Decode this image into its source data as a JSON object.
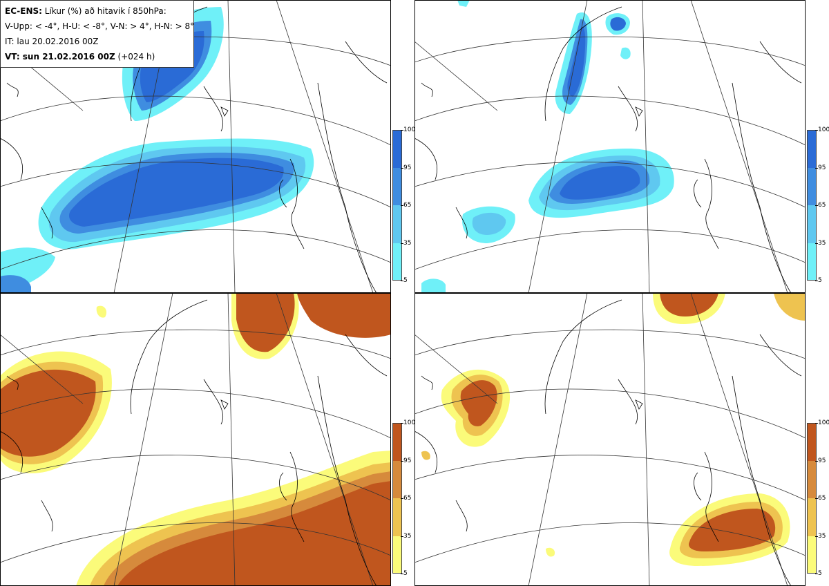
{
  "legend": {
    "line1_bold": "EC-ENS:",
    "line1_text": " Líkur (%) að hitavik í 850hPa:",
    "line2": "V-Upp: < -4°, H-U: < -8°, V-N: > 4°, H-N: > 8°",
    "line3": "IT: lau 20.02.2016 00Z",
    "line4_bold": "VT: sun 21.02.2016 00Z",
    "line4_text": " (+024 h)"
  },
  "colorbars": {
    "cold": {
      "ticks": [
        "100",
        "95",
        "65",
        "35",
        "5"
      ],
      "colors": [
        "#2a6bd6",
        "#3f8de0",
        "#5fc8f0",
        "#6ff0f8"
      ]
    },
    "warm": {
      "ticks": [
        "100",
        "95",
        "65",
        "35",
        "5"
      ],
      "colors": [
        "#c0561e",
        "#d68a3c",
        "#eec350",
        "#fbfb7a"
      ]
    }
  },
  "panels": [
    {
      "id": "V-Upp",
      "scheme": "cold"
    },
    {
      "id": "H-U",
      "scheme": "cold"
    },
    {
      "id": "V-N",
      "scheme": "warm"
    },
    {
      "id": "H-N",
      "scheme": "warm"
    }
  ]
}
